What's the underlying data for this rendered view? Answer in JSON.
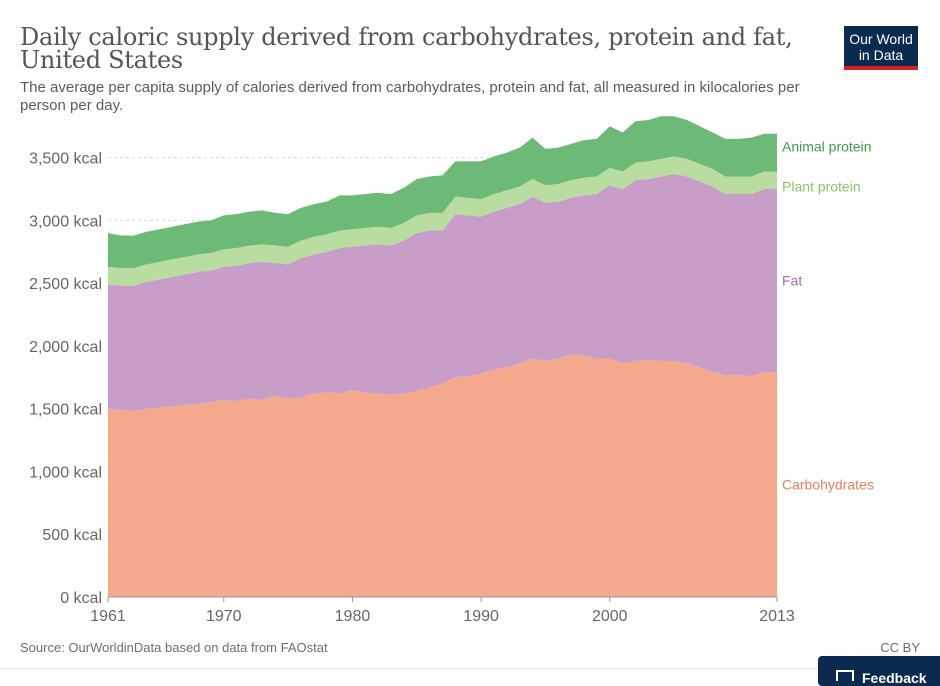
{
  "header": {
    "title": "Daily caloric supply derived from carbohydrates, protein and fat, United States",
    "subtitle": "The average per capita supply of calories derived from carbohydrates, protein and fat, all measured in kilocalories per person per day."
  },
  "logo": {
    "line1": "Our World",
    "line2": "in Data"
  },
  "footer": {
    "source": "Source: OurWorldinData based on data from FAOstat",
    "license": "CC BY"
  },
  "feedback": {
    "label": "Feedback"
  },
  "colors": {
    "carbohydrates": "#f4a88c",
    "fat": "#c89ec9",
    "plant_protein": "#b9dca0",
    "animal_protein": "#6db977",
    "carbohydrates_label": "#e4815e",
    "fat_label": "#a56eaa",
    "plant_protein_label": "#8bc46a",
    "animal_protein_label": "#3f9a4d"
  },
  "chart_data": {
    "type": "area",
    "stacked": true,
    "x": [
      1961,
      1962,
      1963,
      1964,
      1965,
      1966,
      1967,
      1968,
      1969,
      1970,
      1971,
      1972,
      1973,
      1974,
      1975,
      1976,
      1977,
      1978,
      1979,
      1980,
      1981,
      1982,
      1983,
      1984,
      1985,
      1986,
      1987,
      1988,
      1989,
      1990,
      1991,
      1992,
      1993,
      1994,
      1995,
      1996,
      1997,
      1998,
      1999,
      2000,
      2001,
      2002,
      2003,
      2004,
      2005,
      2006,
      2007,
      2008,
      2009,
      2010,
      2011,
      2012,
      2013
    ],
    "series": [
      {
        "name": "Carbohydrates",
        "values": [
          1500,
          1490,
          1480,
          1500,
          1510,
          1520,
          1530,
          1540,
          1550,
          1570,
          1560,
          1580,
          1570,
          1600,
          1580,
          1590,
          1620,
          1630,
          1620,
          1650,
          1630,
          1620,
          1610,
          1620,
          1640,
          1670,
          1700,
          1750,
          1760,
          1780,
          1810,
          1830,
          1860,
          1900,
          1880,
          1900,
          1930,
          1920,
          1900,
          1900,
          1860,
          1880,
          1890,
          1880,
          1880,
          1860,
          1830,
          1790,
          1770,
          1770,
          1760,
          1790,
          1790
        ]
      },
      {
        "name": "Fat",
        "values": [
          990,
          990,
          1000,
          1010,
          1020,
          1030,
          1040,
          1050,
          1050,
          1060,
          1080,
          1080,
          1100,
          1060,
          1070,
          1110,
          1110,
          1120,
          1160,
          1140,
          1170,
          1190,
          1190,
          1220,
          1260,
          1250,
          1220,
          1300,
          1280,
          1250,
          1260,
          1270,
          1270,
          1290,
          1260,
          1250,
          1250,
          1280,
          1310,
          1380,
          1390,
          1440,
          1440,
          1470,
          1490,
          1490,
          1480,
          1480,
          1440,
          1440,
          1450,
          1460,
          1460
        ]
      },
      {
        "name": "Plant protein",
        "values": [
          140,
          140,
          140,
          140,
          140,
          140,
          140,
          140,
          140,
          140,
          140,
          140,
          140,
          140,
          140,
          140,
          140,
          140,
          140,
          140,
          140,
          140,
          140,
          140,
          140,
          140,
          140,
          140,
          140,
          140,
          140,
          140,
          140,
          140,
          140,
          140,
          140,
          140,
          140,
          140,
          140,
          140,
          140,
          140,
          140,
          140,
          140,
          140,
          140,
          140,
          140,
          140,
          140
        ]
      },
      {
        "name": "Animal protein",
        "values": [
          270,
          260,
          260,
          260,
          260,
          260,
          260,
          260,
          260,
          270,
          270,
          270,
          270,
          260,
          260,
          260,
          260,
          260,
          280,
          270,
          270,
          270,
          270,
          280,
          290,
          290,
          300,
          280,
          290,
          300,
          300,
          300,
          310,
          330,
          290,
          290,
          290,
          300,
          300,
          330,
          310,
          330,
          330,
          340,
          320,
          310,
          300,
          290,
          300,
          300,
          310,
          300,
          300
        ]
      }
    ],
    "title": "Daily caloric supply derived from carbohydrates, protein and fat, United States",
    "ylim": [
      0,
      3800
    ],
    "yticks": [
      0,
      500,
      1000,
      1500,
      2000,
      2500,
      3000,
      3500
    ],
    "ytick_labels": [
      "0 kcal",
      "500 kcal",
      "1,000 kcal",
      "1,500 kcal",
      "2,000 kcal",
      "2,500 kcal",
      "3,000 kcal",
      "3,500 kcal"
    ],
    "xticks": [
      1961,
      1970,
      1980,
      1990,
      2000,
      2013
    ],
    "xtick_labels": [
      "1961",
      "1970",
      "1980",
      "1990",
      "2000",
      "2013"
    ],
    "grid": true,
    "legend": "right, inline labels"
  }
}
